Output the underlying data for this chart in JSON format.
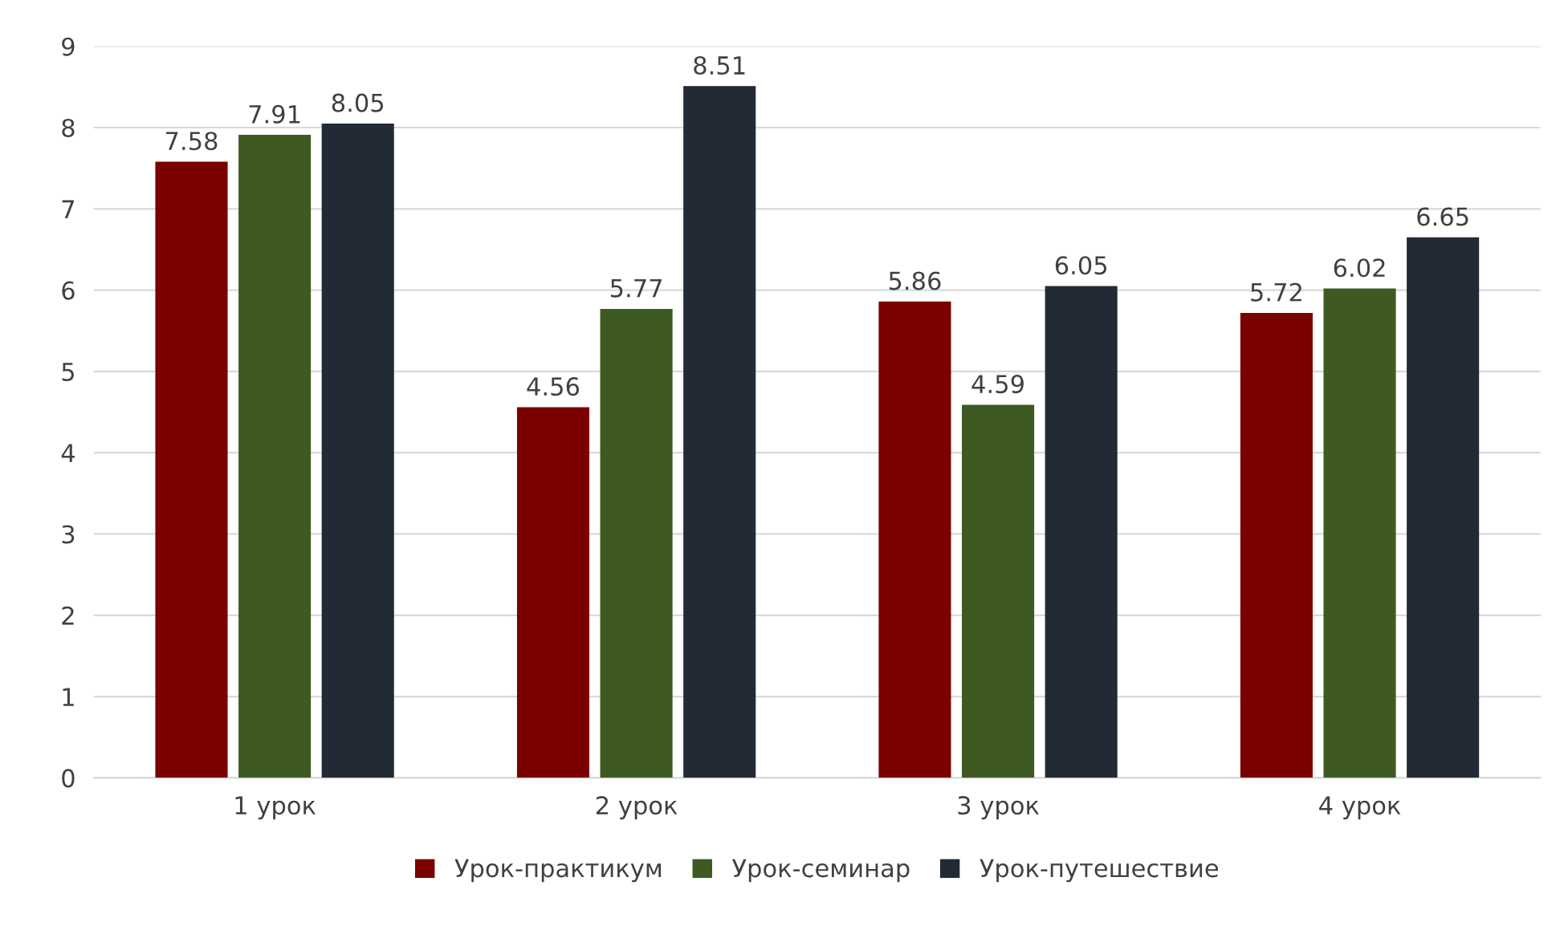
{
  "chart_data": {
    "type": "bar",
    "categories": [
      "1 урок",
      "2 урок",
      "3 урок",
      "4 урок"
    ],
    "series": [
      {
        "name": "Урок-практикум",
        "color": "#7b0000",
        "values": [
          7.58,
          4.56,
          5.86,
          5.72
        ]
      },
      {
        "name": "Урок-семинар",
        "color": "#3e5a22",
        "values": [
          7.91,
          5.77,
          4.59,
          6.02
        ]
      },
      {
        "name": "Урок-путешествие",
        "color": "#222a36",
        "values": [
          8.05,
          8.51,
          6.05,
          6.65
        ]
      }
    ],
    "ylim": [
      0,
      9
    ],
    "yticks": [
      0,
      1,
      2,
      3,
      4,
      5,
      6,
      7,
      8,
      9
    ],
    "grid": "y",
    "legend": "bottom",
    "data_labels": true
  }
}
